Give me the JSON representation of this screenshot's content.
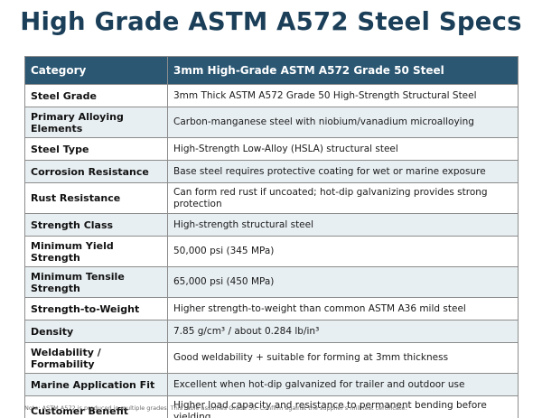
{
  "title": "High Grade ASTM A572 Steel Specs",
  "table": {
    "headers": [
      "Category",
      "3mm High-Grade ASTM A572 Grade 50 Steel"
    ],
    "rows": [
      {
        "category": "Steel Grade",
        "value": "3mm Thick ASTM A572 Grade 50 High-Strength Structural Steel"
      },
      {
        "category": "Primary Alloying Elements",
        "value": "Carbon-manganese steel with niobium/vanadium microalloying"
      },
      {
        "category": "Steel Type",
        "value": "High-Strength Low-Alloy (HSLA) structural steel"
      },
      {
        "category": "Corrosion Resistance",
        "value": "Base steel requires protective coating for wet or marine exposure"
      },
      {
        "category": "Rust Resistance",
        "value": "Can form red rust if uncoated; hot-dip galvanizing provides strong protection"
      },
      {
        "category": "Strength Class",
        "value": "High-strength structural steel"
      },
      {
        "category": "Minimum Yield Strength",
        "value": "50,000 psi (345 MPa)"
      },
      {
        "category": "Minimum Tensile Strength",
        "value": "65,000 psi (450 MPa)"
      },
      {
        "category": "Strength-to-Weight",
        "value": "Higher strength-to-weight than common ASTM A36 mild steel"
      },
      {
        "category": "Density",
        "value": "7.85 g/cm³ / about 0.284 lb/in³"
      },
      {
        "category": "Weldability / Formability",
        "value": "Good weldability + suitable for forming at 3mm thickness"
      },
      {
        "category": "Marine Application Fit",
        "value": "Excellent when hot-dip galvanized for trailer and outdoor use"
      },
      {
        "category": "Customer Benefit",
        "value": "Higher load capacity and resistance to permanent bending before yielding"
      }
    ]
  },
  "footnote": "Note: ASTM A572 is produced in multiple grades. This table assumes Grade 50. Confirm against the supplier's mill test certificate."
}
